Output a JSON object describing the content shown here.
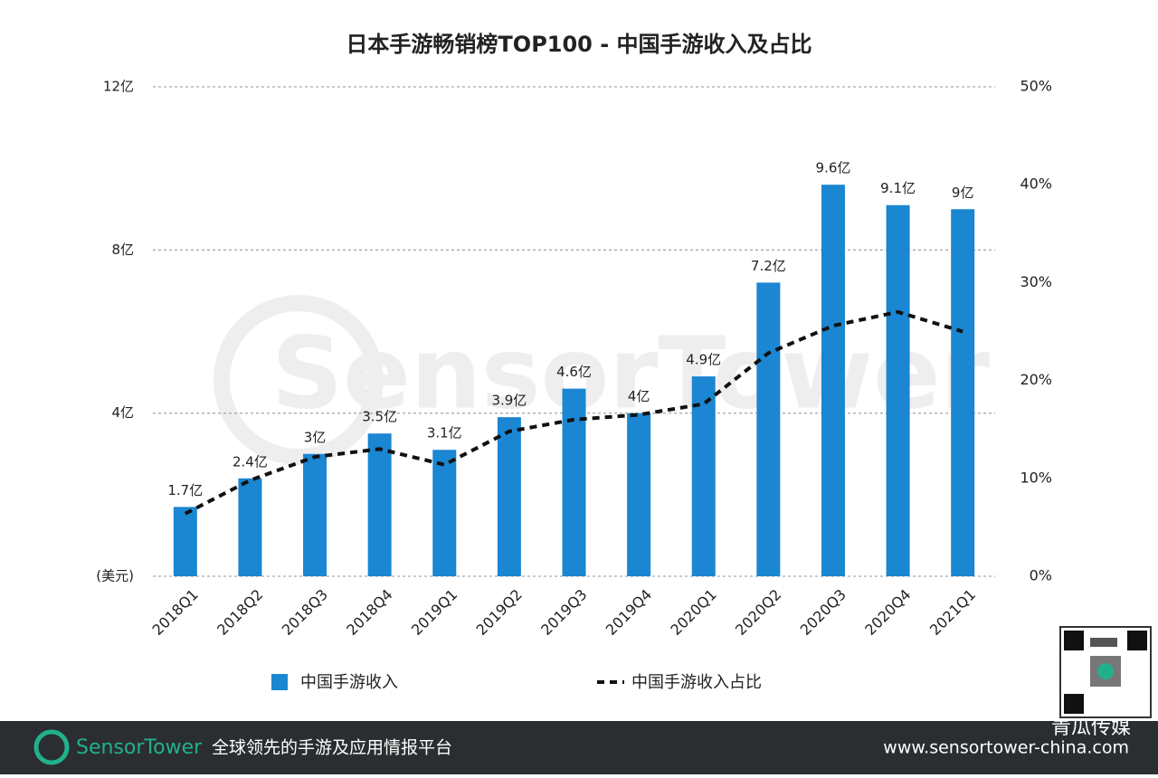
{
  "chart_data": {
    "type": "bar",
    "title": "日本手游畅销榜TOP100 - 中国手游收入及占比",
    "categories": [
      "2018Q1",
      "2018Q2",
      "2018Q3",
      "2018Q4",
      "2019Q1",
      "2019Q2",
      "2019Q3",
      "2019Q4",
      "2020Q1",
      "2020Q2",
      "2020Q3",
      "2020Q4",
      "2021Q1"
    ],
    "series": [
      {
        "name": "中国手游收入",
        "type": "bar",
        "color": "#1b86d2",
        "values": [
          1.7,
          2.4,
          3,
          3.5,
          3.1,
          3.9,
          4.6,
          4,
          4.9,
          7.2,
          9.6,
          9.1,
          9
        ],
        "value_labels": [
          "1.7亿",
          "2.4亿",
          "3亿",
          "3.5亿",
          "3.1亿",
          "3.9亿",
          "4.6亿",
          "4亿",
          "4.9亿",
          "7.2亿",
          "9.6亿",
          "9.1亿",
          "9亿"
        ]
      },
      {
        "name": "中国手游收入占比",
        "type": "line",
        "axis": "y2",
        "color": "#111111",
        "values": [
          6.4,
          9.8,
          12.2,
          13.0,
          11.4,
          14.8,
          16.0,
          16.5,
          17.6,
          22.8,
          25.6,
          27.0,
          25.0
        ]
      }
    ],
    "ylim": [
      0,
      12
    ],
    "yticks": [
      {
        "value": 0,
        "label": "(美元)"
      },
      {
        "value": 4,
        "label": "4亿"
      },
      {
        "value": 8,
        "label": "8亿"
      },
      {
        "value": 12,
        "label": "12亿"
      }
    ],
    "y2lim": [
      0,
      50
    ],
    "y2ticks": [
      {
        "value": 0,
        "label": "0%"
      },
      {
        "value": 10,
        "label": "10%"
      },
      {
        "value": 20,
        "label": "20%"
      },
      {
        "value": 30,
        "label": "30%"
      },
      {
        "value": 40,
        "label": "40%"
      },
      {
        "value": 50,
        "label": "50%"
      }
    ],
    "grid": true,
    "legend": "bottom"
  },
  "footer": {
    "brand": "SensorTower",
    "tagline": "全球领先的手游及应用情报平台",
    "url": "www.sensortower-china.com",
    "overlay": "青瓜传媒"
  }
}
